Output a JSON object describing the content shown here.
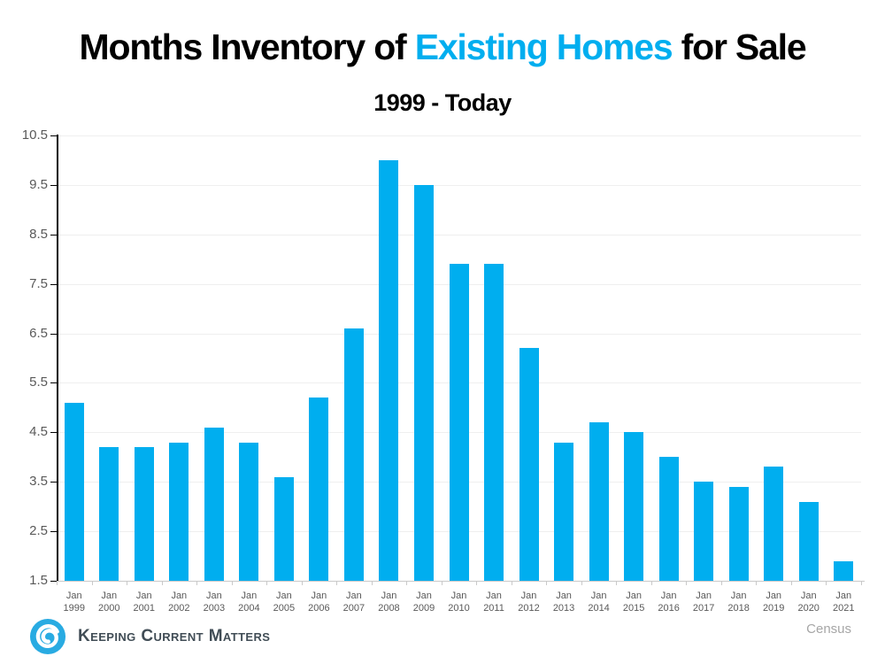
{
  "title": {
    "prefix": "Months Inventory of ",
    "highlight": "Existing Homes",
    "suffix": " for Sale"
  },
  "subtitle": "1999 - Today",
  "footer": {
    "logo_text": "Keeping Current Matters",
    "source": "Census"
  },
  "colors": {
    "accent": "#00AEEF",
    "bar": "#00AEEF",
    "logo_blue": "#29ABE2",
    "logo_text": "#414D56",
    "axis_label": "#595959",
    "gridline": "#EFEFEF",
    "x_axis_line": "#C9C9C9",
    "y_axis_line": "#000000",
    "source_text": "#A6A6A6"
  },
  "chart_data": {
    "type": "bar",
    "title": "Months Inventory of Existing Homes for Sale",
    "subtitle": "1999 - Today",
    "categories": [
      "Jan 1999",
      "Jan 2000",
      "Jan 2001",
      "Jan 2002",
      "Jan 2003",
      "Jan 2004",
      "Jan 2005",
      "Jan 2006",
      "Jan 2007",
      "Jan 2008",
      "Jan 2009",
      "Jan 2010",
      "Jan 2011",
      "Jan 2012",
      "Jan 2013",
      "Jan 2014",
      "Jan 2015",
      "Jan 2016",
      "Jan 2017",
      "Jan 2018",
      "Jan 2019",
      "Jan 2020",
      "Jan 2021"
    ],
    "values": [
      5.1,
      4.2,
      4.2,
      4.3,
      4.6,
      4.3,
      3.6,
      5.2,
      6.6,
      10.0,
      9.5,
      7.9,
      7.9,
      6.2,
      4.3,
      4.7,
      4.5,
      4.0,
      3.5,
      3.4,
      3.8,
      3.1,
      1.9
    ],
    "ylim": [
      1.5,
      10.5
    ],
    "yticks": [
      1.5,
      2.5,
      3.5,
      4.5,
      5.5,
      6.5,
      7.5,
      8.5,
      9.5,
      10.5
    ],
    "xlabel": "",
    "ylabel": "",
    "grid": true,
    "legend": false,
    "bar_color": "#00AEEF",
    "source": "Census"
  }
}
